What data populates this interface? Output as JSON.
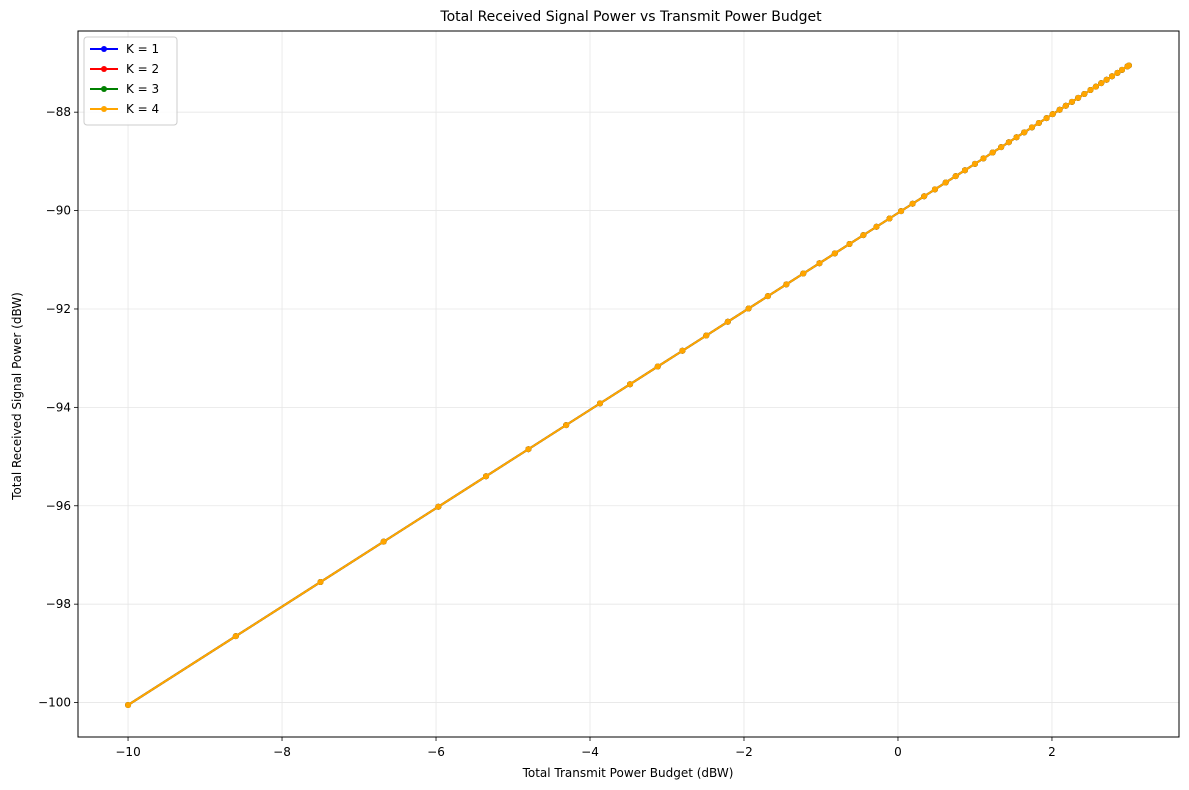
{
  "chart_data": {
    "type": "line",
    "title": "Total Received Signal Power vs Transmit Power Budget",
    "xlabel": "Total Transmit Power Budget (dBW)",
    "ylabel": "Total Received Signal Power (dBW)",
    "xlim": [
      -10.65,
      3.65
    ],
    "ylim": [
      -100.7,
      -86.35
    ],
    "xticks": [
      -10,
      -8,
      -6,
      -4,
      -2,
      0,
      2
    ],
    "yticks": [
      -100,
      -98,
      -96,
      -94,
      -92,
      -90,
      -88
    ],
    "xtick_labels": [
      "−10",
      "−8",
      "−6",
      "−4",
      "−2",
      "0",
      "2"
    ],
    "ytick_labels": [
      "−100",
      "−98",
      "−96",
      "−94",
      "−92",
      "−90",
      "−88"
    ],
    "grid": true,
    "legend_position": "upper-left",
    "x": [
      -10.0,
      -8.6,
      -7.5,
      -6.68,
      -5.97,
      -5.35,
      -4.8,
      -4.31,
      -3.87,
      -3.48,
      -3.12,
      -2.8,
      -2.49,
      -2.21,
      -1.94,
      -1.69,
      -1.45,
      -1.23,
      -1.02,
      -0.82,
      -0.63,
      -0.45,
      -0.28,
      -0.11,
      0.04,
      0.19,
      0.34,
      0.48,
      0.62,
      0.75,
      0.87,
      1.0,
      1.11,
      1.23,
      1.34,
      1.44,
      1.54,
      1.64,
      1.74,
      1.83,
      1.93,
      2.01,
      2.1,
      2.18,
      2.26,
      2.34,
      2.42,
      2.5,
      2.57,
      2.64,
      2.71,
      2.78,
      2.85,
      2.91,
      2.98,
      3.0
    ],
    "series": [
      {
        "name": "K = 1",
        "color": "#0000ff",
        "slope": 1.0,
        "intercept": -90.05
      },
      {
        "name": "K = 2",
        "color": "#ff0000",
        "slope": 1.0,
        "intercept": -90.05
      },
      {
        "name": "K = 3",
        "color": "#008000",
        "slope": 1.0,
        "intercept": -90.05
      },
      {
        "name": "K = 4",
        "color": "#ffa500",
        "slope": 1.0,
        "intercept": -90.05
      }
    ]
  }
}
